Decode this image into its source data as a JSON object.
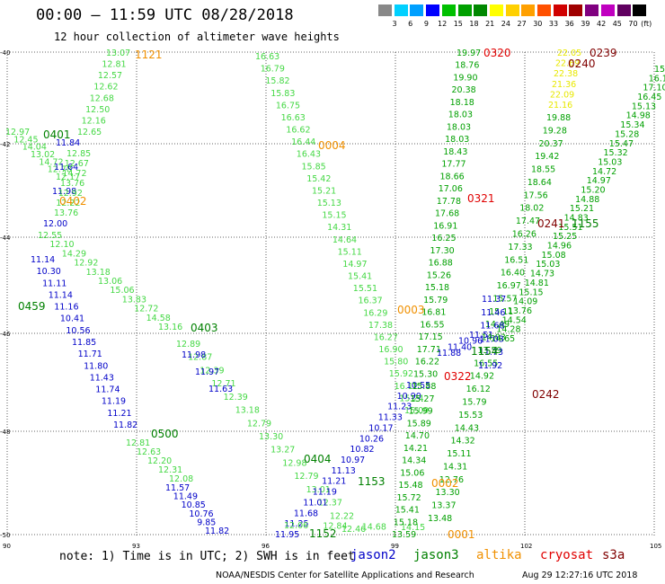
{
  "header": {
    "title": "00:00 – 11:59 UTC 08/28/2018",
    "subtitle": "12 hour collection of altimeter wave heights"
  },
  "legend": {
    "unit": "(ft)",
    "colors": [
      "#888888",
      "#00d0ff",
      "#00a0ff",
      "#0000ff",
      "#00c000",
      "#00a000",
      "#008800",
      "#ffff00",
      "#ffd000",
      "#ffa000",
      "#ff5000",
      "#d00000",
      "#a00000",
      "#800080",
      "#c000c0",
      "#600060",
      "#000000"
    ],
    "labels": [
      "3",
      "6",
      "9",
      "12",
      "15",
      "18",
      "21",
      "24",
      "27",
      "30",
      "33",
      "36",
      "39",
      "42",
      "45",
      "70"
    ]
  },
  "axes": {
    "y_labels": [
      "-40",
      "-42",
      "-44",
      "-46",
      "-48",
      "-50"
    ],
    "x_labels": [
      "90",
      "93",
      "96",
      "99",
      "102",
      "105"
    ]
  },
  "colors": {
    "jason2": "#0000c8",
    "jason3": "#008000",
    "altika": "#f09000",
    "cryosat": "#e00000",
    "s3a": "#800000",
    "light_green": "#44d844",
    "yellow": "#e8e800",
    "dark_green": "#00a000"
  },
  "time_labels": [
    {
      "text": "1121",
      "sat": "altika"
    },
    {
      "text": "0320",
      "sat": "cryosat"
    },
    {
      "text": "0239",
      "sat": "s3a"
    },
    {
      "text": "0240",
      "sat": "s3a"
    },
    {
      "text": "0401",
      "sat": "jason3"
    },
    {
      "text": "0004",
      "sat": "altika"
    },
    {
      "text": "0402",
      "sat": "altika"
    },
    {
      "text": "0321",
      "sat": "cryosat"
    },
    {
      "text": "0241",
      "sat": "s3a"
    },
    {
      "text": "1155",
      "sat": "jason3"
    },
    {
      "text": "0459",
      "sat": "jason3"
    },
    {
      "text": "0003",
      "sat": "altika"
    },
    {
      "text": "0403",
      "sat": "jason3"
    },
    {
      "text": "1154",
      "sat": "jason3"
    },
    {
      "text": "0322",
      "sat": "cryosat"
    },
    {
      "text": "0242",
      "sat": "s3a"
    },
    {
      "text": "0500",
      "sat": "jason3"
    },
    {
      "text": "0404",
      "sat": "jason3"
    },
    {
      "text": "1153",
      "sat": "jason3"
    },
    {
      "text": "0002",
      "sat": "altika"
    },
    {
      "text": "1152",
      "sat": "jason3"
    },
    {
      "text": "0001",
      "sat": "altika"
    }
  ],
  "tracks": {
    "t1_light": [
      "13.07",
      "12.81",
      "12.57",
      "12.62",
      "12.68",
      "12.50",
      "12.16",
      "12.65"
    ],
    "t1_left": [
      "12.97",
      "12.45",
      "14.04",
      "13.02",
      "14.72",
      "12.78",
      "12.17"
    ],
    "t1_blue_a": [
      "11.84",
      "11.64",
      "11.98"
    ],
    "t1_mid": [
      "12.85",
      "12.67",
      "14.72",
      "13.76",
      "12.92",
      "12.22",
      "13.76"
    ],
    "t1_blue_b": [
      "12.00"
    ],
    "t1_lower": [
      "12.55",
      "12.10",
      "14.29",
      "12.92",
      "13.18",
      "13.06",
      "15.06",
      "13.83",
      "12.72",
      "14.58",
      "13.16"
    ],
    "t1_lower2": [
      "12.89",
      "12.87",
      "12.39",
      "12.71",
      "12.39",
      "13.18",
      "12.79",
      "13.30",
      "13.27",
      "12.98",
      "12.79",
      "13.01",
      "12.37",
      "12.22",
      "12.46"
    ],
    "t2_blue": [
      "11.14",
      "10.30",
      "11.11",
      "11.14",
      "11.16",
      "10.41",
      "10.56",
      "11.85",
      "11.71",
      "11.80",
      "11.43",
      "11.74",
      "11.19",
      "11.21",
      "11.82"
    ],
    "t2_light": [
      "12.81",
      "12.63",
      "12.20",
      "12.31",
      "12.08"
    ],
    "t3_blue": [
      "11.98",
      "11.97",
      "11.63"
    ],
    "t3b_blue": [
      "11.57",
      "11.49",
      "10.85",
      "10.76",
      "9.85",
      "11.82"
    ],
    "t4_light": [
      "16.63",
      "16.79",
      "15.82",
      "15.83",
      "16.75",
      "16.63",
      "16.62",
      "16.44",
      "16.43",
      "15.85",
      "15.42",
      "15.21",
      "15.13",
      "15.15",
      "14.31",
      "14.64",
      "15.11",
      "14.97",
      "15.41",
      "15.51",
      "16.37",
      "16.29",
      "17.38",
      "16.27",
      "16.90",
      "15.80",
      "15.92",
      "16.12",
      "15.24",
      "15.09"
    ],
    "t4_blue": [
      "10.55",
      "10.90",
      "11.23",
      "11.33",
      "10.17",
      "10.26",
      "10.82",
      "10.97",
      "11.13",
      "11.21",
      "11.19",
      "11.01",
      "11.68",
      "11.25",
      "11.95"
    ],
    "t4_low": [
      "12.06",
      "12.84",
      "14.68",
      "14.15"
    ],
    "t5_green": [
      "19.97",
      "18.76",
      "19.90",
      "20.38",
      "18.18",
      "18.03",
      "18.03",
      "18.03",
      "18.43",
      "17.77",
      "18.66",
      "17.06",
      "17.78",
      "17.68",
      "16.91",
      "16.25",
      "17.30",
      "16.88",
      "15.26",
      "15.18",
      "15.79",
      "16.81",
      "16.55",
      "17.15",
      "17.71",
      "16.22",
      "15.30",
      "15.88",
      "15.27",
      "15.99",
      "15.89",
      "14.70",
      "14.21",
      "14.34",
      "15.06",
      "15.48",
      "15.72",
      "15.41",
      "15.18",
      "13.59"
    ],
    "t5_blue": [
      "11.51",
      "10.96",
      "11.40",
      "11.88"
    ],
    "t6_yellow": [
      "22.05",
      "22.69",
      "22.38",
      "21.36",
      "22.09",
      "21.16"
    ],
    "t6_green": [
      "19.88",
      "19.28",
      "20.37",
      "19.42",
      "18.55",
      "18.64",
      "17.56",
      "18.02",
      "17.47",
      "16.26",
      "17.33",
      "16.51",
      "16.40",
      "16.97",
      "15.57",
      "15.11",
      "14.49",
      "14.03",
      "13.59",
      "16.55",
      "14.92",
      "16.12",
      "15.79",
      "15.53",
      "14.43",
      "14.32",
      "15.11",
      "14.31",
      "12.76",
      "13.30",
      "13.37",
      "13.48"
    ],
    "t7_green": [
      "15.71",
      "16.11",
      "17.10",
      "16.45",
      "15.13",
      "14.98",
      "15.34",
      "15.28",
      "15.47",
      "15.32",
      "15.03",
      "14.72",
      "14.97",
      "15.20",
      "14.88",
      "15.21",
      "14.83",
      "15.51",
      "15.25",
      "14.96",
      "15.08",
      "15.03",
      "14.73",
      "14.81",
      "15.15",
      "14.09",
      "13.76",
      "14.54",
      "14.28",
      "14.65"
    ],
    "t7_blue": [
      "11.37",
      "11.46",
      "11.68",
      "11.03",
      "11.73",
      "11.92"
    ]
  },
  "footer": {
    "note": "note: 1) Time is in UTC; 2) SWH is in feet",
    "satellites": [
      {
        "name": "jason2",
        "color": "#0000c8"
      },
      {
        "name": "jason3",
        "color": "#008000"
      },
      {
        "name": "altika",
        "color": "#f09000"
      },
      {
        "name": "cryosat",
        "color": "#e00000"
      },
      {
        "name": "s3a",
        "color": "#800000"
      }
    ],
    "credit": "NOAA/NESDIS Center for Satellite Applications and Research",
    "stamp": "Aug 29 12:27:16 UTC 2018"
  }
}
